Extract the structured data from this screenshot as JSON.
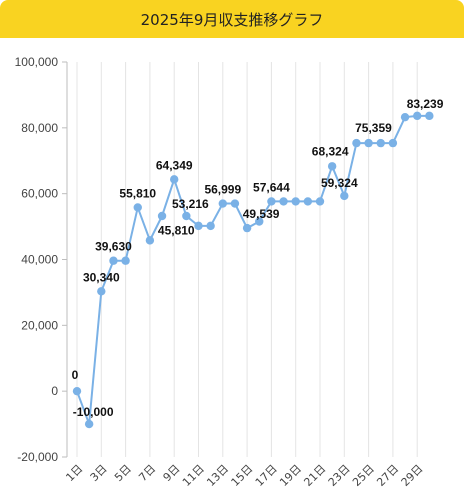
{
  "chart_data": {
    "type": "line",
    "title": "2025年9月収支推移グラフ",
    "xlabel": "",
    "ylabel": "",
    "ylim": [
      -20000,
      100000
    ],
    "yticks": [
      -20000,
      0,
      20000,
      40000,
      60000,
      80000,
      100000
    ],
    "ytick_labels": [
      "-20,000",
      "0",
      "20,000",
      "40,000",
      "60,000",
      "80,000",
      "100,000"
    ],
    "xtick_labels": [
      "1日",
      "3日",
      "5日",
      "7日",
      "9日",
      "11日",
      "13日",
      "15日",
      "17日",
      "19日",
      "21日",
      "23日",
      "25日",
      "27日",
      "29日"
    ],
    "xtick_days": [
      1,
      3,
      5,
      7,
      9,
      11,
      13,
      15,
      17,
      19,
      21,
      23,
      25,
      27,
      29
    ],
    "x": [
      1,
      2,
      3,
      4,
      5,
      6,
      7,
      8,
      9,
      10,
      11,
      12,
      13,
      14,
      15,
      16,
      17,
      18,
      19,
      20,
      21,
      22,
      23,
      24,
      25,
      26,
      27,
      28,
      29,
      30
    ],
    "grid": "vertical",
    "legend": "none",
    "line_color": "#7ab1e6",
    "series": [
      {
        "values": [
          0,
          -10000,
          30340,
          39630,
          39630,
          55810,
          45810,
          53216,
          64349,
          53216,
          50216,
          50216,
          56999,
          56999,
          49539,
          51539,
          57644,
          57644,
          57644,
          57644,
          57644,
          68324,
          59324,
          75359,
          75359,
          75359,
          75359,
          83239,
          83639,
          83639
        ]
      }
    ],
    "data_labels": [
      {
        "day": 1,
        "text": "0"
      },
      {
        "day": 2,
        "text": "-10,000"
      },
      {
        "day": 3,
        "text": "30,340"
      },
      {
        "day": 4,
        "text": "39,630"
      },
      {
        "day": 6,
        "text": "55,810"
      },
      {
        "day": 7,
        "text": "45,810"
      },
      {
        "day": 9,
        "text": "64,349"
      },
      {
        "day": 10,
        "text": "53,216"
      },
      {
        "day": 13,
        "text": "56,999"
      },
      {
        "day": 15,
        "text": "49,539"
      },
      {
        "day": 17,
        "text": "57,644"
      },
      {
        "day": 22,
        "text": "68,324"
      },
      {
        "day": 23,
        "text": "59,324"
      },
      {
        "day": 24,
        "text": "75,359"
      },
      {
        "day": 28,
        "text": "83,239"
      }
    ]
  }
}
